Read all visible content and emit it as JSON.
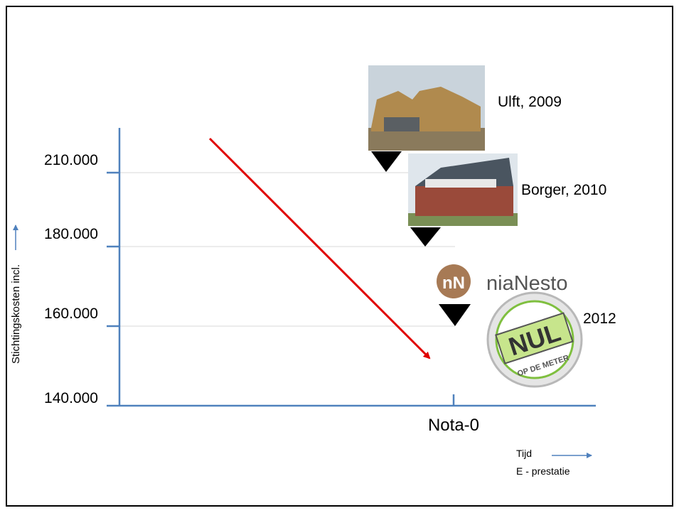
{
  "axis": {
    "y_label": "Stichtingskosten incl.",
    "y_ticks": [
      "210.000",
      "180.000",
      "160.000",
      "140.000"
    ],
    "x_tick": "Nota-0",
    "x_label": [
      "Tijd",
      "E - prestatie"
    ]
  },
  "milestones": [
    {
      "label": "Ulft, 2009"
    },
    {
      "label": "Borger, 2010"
    },
    {
      "label": "2012"
    }
  ],
  "logos": {
    "brand_mark": "nN",
    "brand": "niaNesto",
    "badge": "NUL",
    "badge_ring": "OP DE METER"
  }
}
